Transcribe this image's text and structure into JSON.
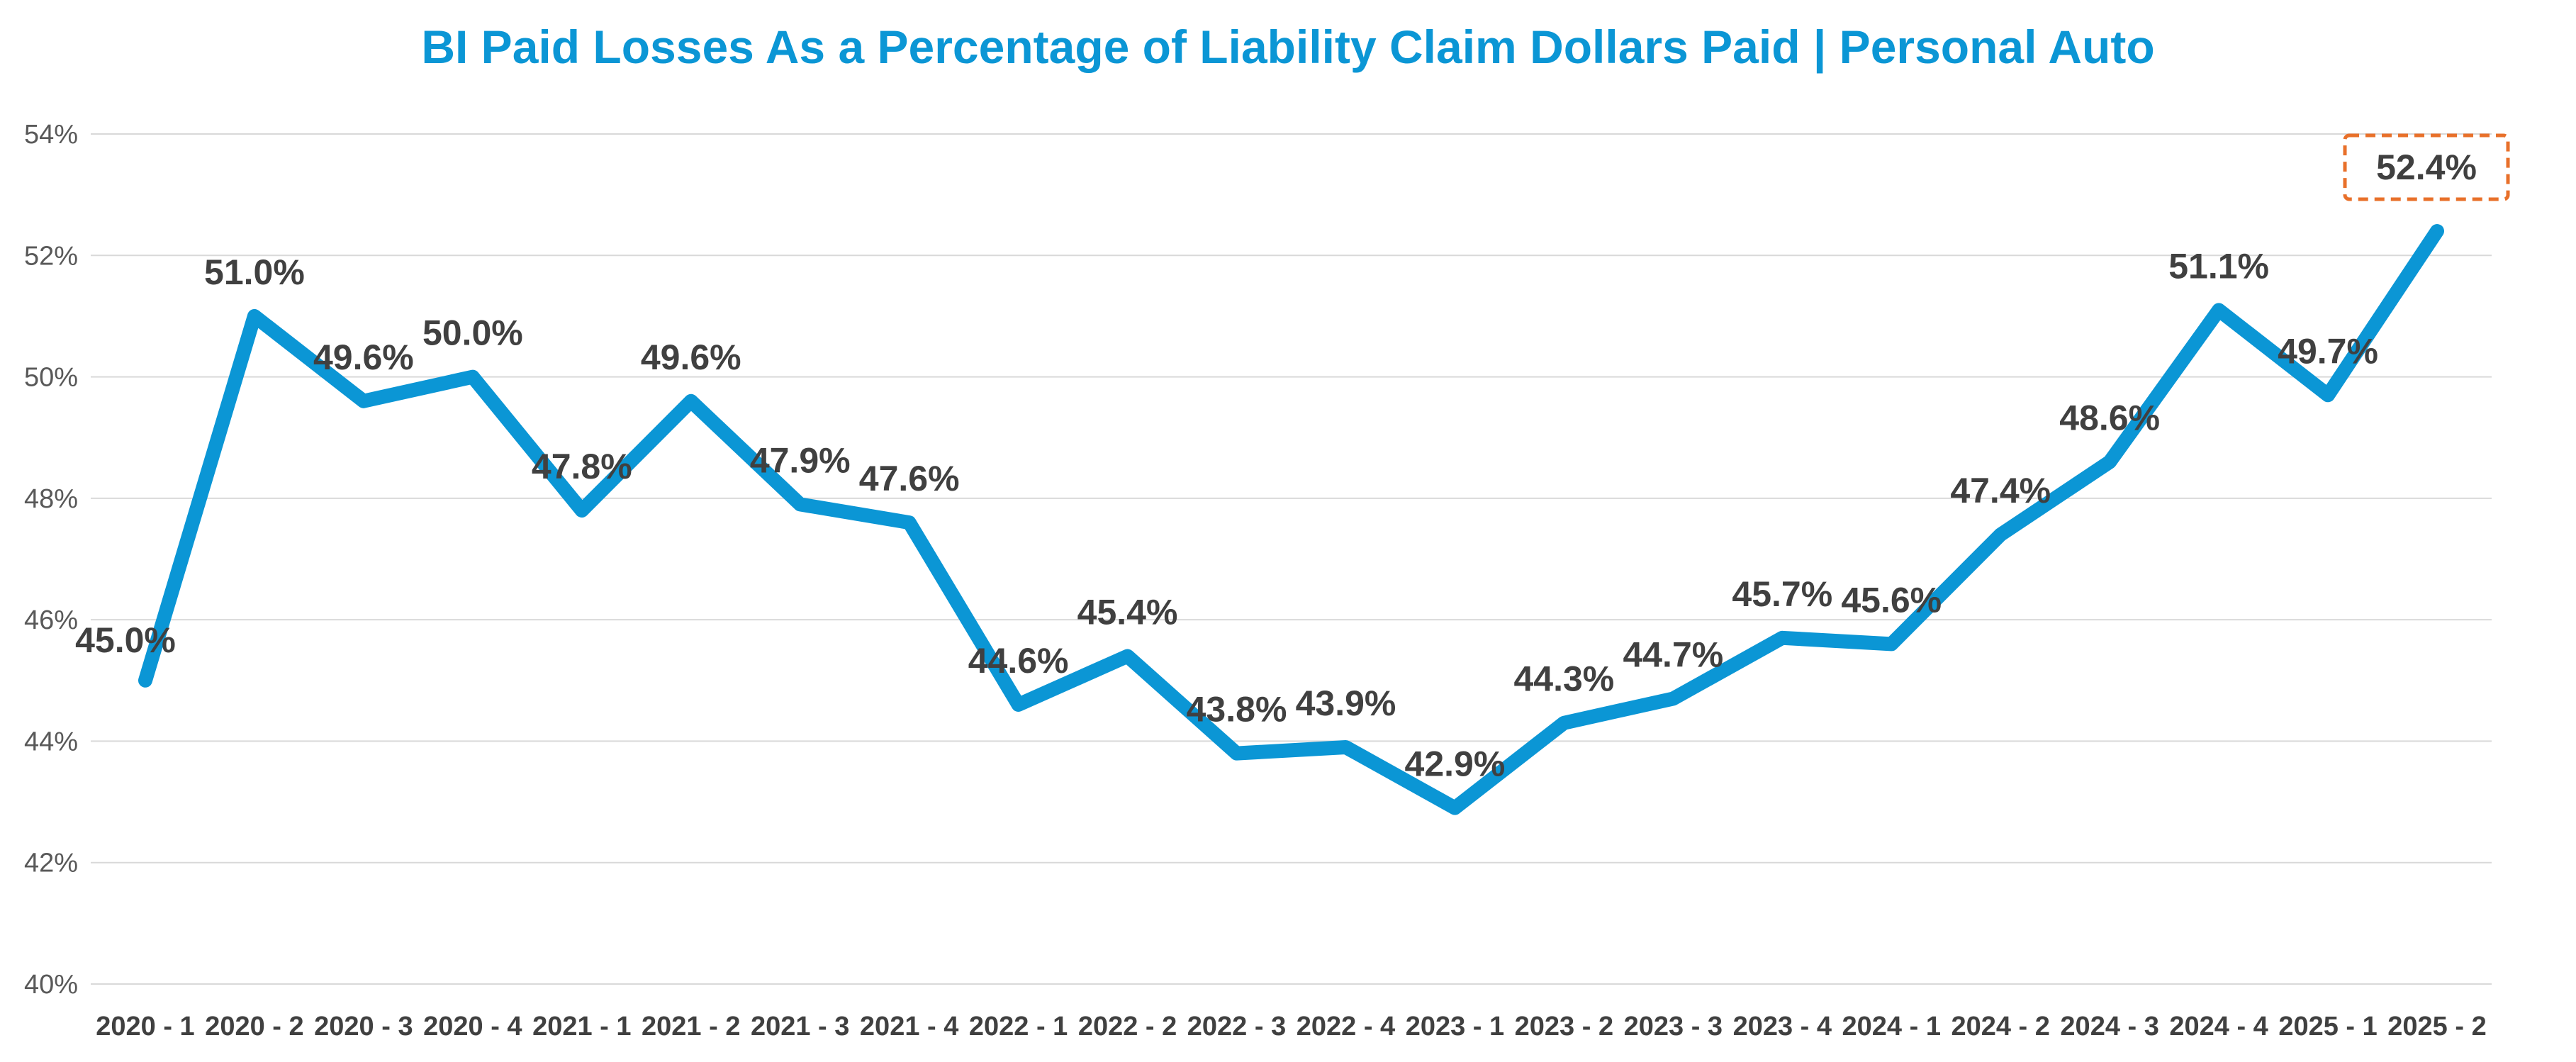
{
  "chart_data": {
    "type": "line",
    "title": "BI Paid Losses As a Percentage of Liability Claim Dollars Paid | Personal Auto",
    "xlabel": "",
    "ylabel": "",
    "categories": [
      "2020 - 1",
      "2020 - 2",
      "2020 - 3",
      "2020 - 4",
      "2021 - 1",
      "2021 - 2",
      "2021 - 3",
      "2021 - 4",
      "2022 - 1",
      "2022 - 2",
      "2022 - 3",
      "2022 - 4",
      "2023 - 1",
      "2023 - 2",
      "2023 - 3",
      "2023 - 4",
      "2024 - 1",
      "2024 - 2",
      "2024 - 3",
      "2024 - 4",
      "2025 - 1",
      "2025 - 2"
    ],
    "series": [
      {
        "values": [
          45.0,
          51.0,
          49.6,
          50.0,
          47.8,
          49.6,
          47.9,
          47.6,
          44.6,
          45.4,
          43.8,
          43.9,
          42.9,
          44.3,
          44.7,
          45.7,
          45.6,
          47.4,
          48.6,
          51.1,
          49.7,
          52.4
        ],
        "labels": [
          "45.0%",
          "51.0%",
          "49.6%",
          "50.0%",
          "47.8%",
          "49.6%",
          "47.9%",
          "47.6%",
          "44.6%",
          "45.4%",
          "43.8%",
          "43.9%",
          "42.9%",
          "44.3%",
          "44.7%",
          "45.7%",
          "45.6%",
          "47.4%",
          "48.6%",
          "51.1%",
          "49.7%",
          "52.4%"
        ]
      }
    ],
    "ylim": [
      40,
      54
    ],
    "yticks": [
      "40%",
      "42%",
      "44%",
      "46%",
      "48%",
      "50%",
      "52%",
      "54%"
    ],
    "grid": true,
    "legend": "none",
    "highlighted_point": "2025 - 2",
    "colors": {
      "line": "#0B96D5",
      "title": "#0B96D5",
      "highlight_box": "#E8702A",
      "gridline": "#D9D9D9"
    }
  }
}
